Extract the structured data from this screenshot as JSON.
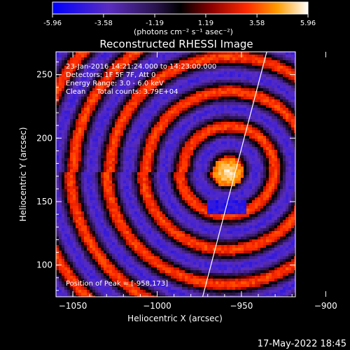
{
  "chart_data": {
    "type": "heatmap",
    "title": "Reconstructed RHESSI Image",
    "xlabel": "Heliocentric X (arcsec)",
    "ylabel": "Heliocentric Y (arcsec)",
    "xlim": [
      -1060,
      -918
    ],
    "ylim": [
      75,
      268
    ],
    "xticks": [
      -1050,
      -1000,
      -950,
      -900
    ],
    "yticks": [
      100,
      150,
      200,
      250
    ],
    "grid": false,
    "colorbar": {
      "min": -5.96,
      "max": 5.96,
      "ticks": [
        "-5.96",
        "-3.58",
        "-1.19",
        "1.19",
        "3.58",
        "5.96"
      ],
      "units_text": "(photons cm⁻² s⁻¹ asec⁻²)",
      "colormap": [
        "#0000ff",
        "#6a2fb8",
        "#3a1a6a",
        "#000000",
        "#7a0000",
        "#ff2000",
        "#ff9a00",
        "#ffffff"
      ]
    },
    "annotations": [
      "23-Jan-2016 14:21:24.000 to 14:23:00.000",
      "Detectors: 1F 5F 7F, Att 0",
      "Energy Range: 3.0 - 6.0 keV",
      "Clean     Total counts: 3.79E+04"
    ],
    "peak_label": "Position of Peak = [-958,173]",
    "peak_position": [
      -958,
      173
    ],
    "limb_line": [
      [
        -973,
        75
      ],
      [
        -935,
        268
      ]
    ],
    "footer_date": "17-May-2022 18:45"
  }
}
